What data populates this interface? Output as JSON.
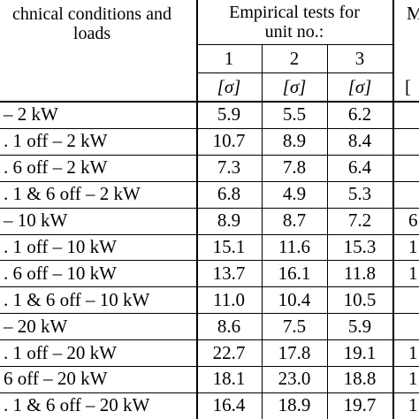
{
  "header": {
    "conditions_line1": "chnical conditions and",
    "conditions_line2": "loads",
    "tests_line1": "Empirical tests for",
    "tests_line2": "unit no.:",
    "units": [
      "1",
      "2",
      "3"
    ],
    "sigma_labels": [
      "[σ]",
      "[σ]",
      "[σ]"
    ],
    "cut_col_top": "M",
    "cut_col_sigma": "["
  },
  "rows": [
    {
      "condition": "– 2 kW",
      "v1": "5.9",
      "v2": "5.5",
      "v3": "6.2",
      "cut": ""
    },
    {
      "condition": ". 1 off – 2 kW",
      "v1": "10.7",
      "v2": "8.9",
      "v3": "8.4",
      "cut": ""
    },
    {
      "condition": ". 6 off – 2 kW",
      "v1": "7.3",
      "v2": "7.8",
      "v3": "6.4",
      "cut": ""
    },
    {
      "condition": ". 1 & 6 off – 2 kW",
      "v1": "6.8",
      "v2": "4.9",
      "v3": "5.3",
      "cut": ""
    },
    {
      "condition": "– 10 kW",
      "v1": "8.9",
      "v2": "8.7",
      "v3": "7.2",
      "cut": "6"
    },
    {
      "condition": ". 1 off – 10 kW",
      "v1": "15.1",
      "v2": "11.6",
      "v3": "15.3",
      "cut": "1"
    },
    {
      "condition": ". 6 off – 10 kW",
      "v1": "13.7",
      "v2": "16.1",
      "v3": "11.8",
      "cut": "1"
    },
    {
      "condition": ". 1 & 6 off – 10 kW",
      "v1": "11.0",
      "v2": "10.4",
      "v3": "10.5",
      "cut": ""
    },
    {
      "condition": "– 20 kW",
      "v1": "8.6",
      "v2": "7.5",
      "v3": "5.9",
      "cut": ""
    },
    {
      "condition": ". 1 off – 20 kW",
      "v1": "22.7",
      "v2": "17.8",
      "v3": "19.1",
      "cut": "1"
    },
    {
      "condition": "6 off – 20 kW",
      "v1": "18.1",
      "v2": "23.0",
      "v3": "18.8",
      "cut": "1"
    },
    {
      "condition": ". 1 & 6 off – 20 kW",
      "v1": "16.4",
      "v2": "18.9",
      "v3": "19.7",
      "cut": "1"
    }
  ]
}
